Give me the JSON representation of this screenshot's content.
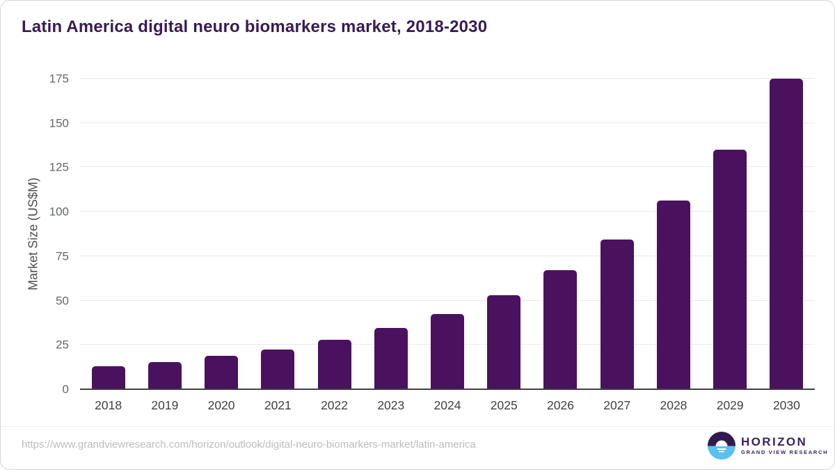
{
  "chart_data": {
    "type": "bar",
    "title": "Latin America digital neuro biomarkers market, 2018-2030",
    "categories": [
      "2018",
      "2019",
      "2020",
      "2021",
      "2022",
      "2023",
      "2024",
      "2025",
      "2026",
      "2027",
      "2028",
      "2029",
      "2030"
    ],
    "values": [
      13,
      15.5,
      19,
      22.5,
      28,
      34.5,
      42.5,
      53,
      67,
      84.5,
      106.5,
      135,
      175
    ],
    "xlabel": "",
    "ylabel": "Market Size (US$M)",
    "ylim": [
      0,
      175
    ],
    "ytick_step": 25,
    "grid": true,
    "legend": false,
    "bar_color": "#4a115e"
  },
  "footer": {
    "source_url": "https://www.grandviewresearch.com/horizon/outlook/digital-neuro-biomarkers-market/latin-america",
    "logo": {
      "name": "HORIZON",
      "subtitle": "GRAND VIEW RESEARCH"
    }
  },
  "colors": {
    "title_text": "#3a1a52",
    "bar": "#4a115e",
    "gridline": "#e9e9e9",
    "axis_line": "#404040",
    "y_tick_text": "#63666a",
    "x_tick_text": "#3e4043",
    "url_text": "#bcbcbc",
    "logo_purple": "#321a4e",
    "logo_blue": "#58c2ef"
  }
}
